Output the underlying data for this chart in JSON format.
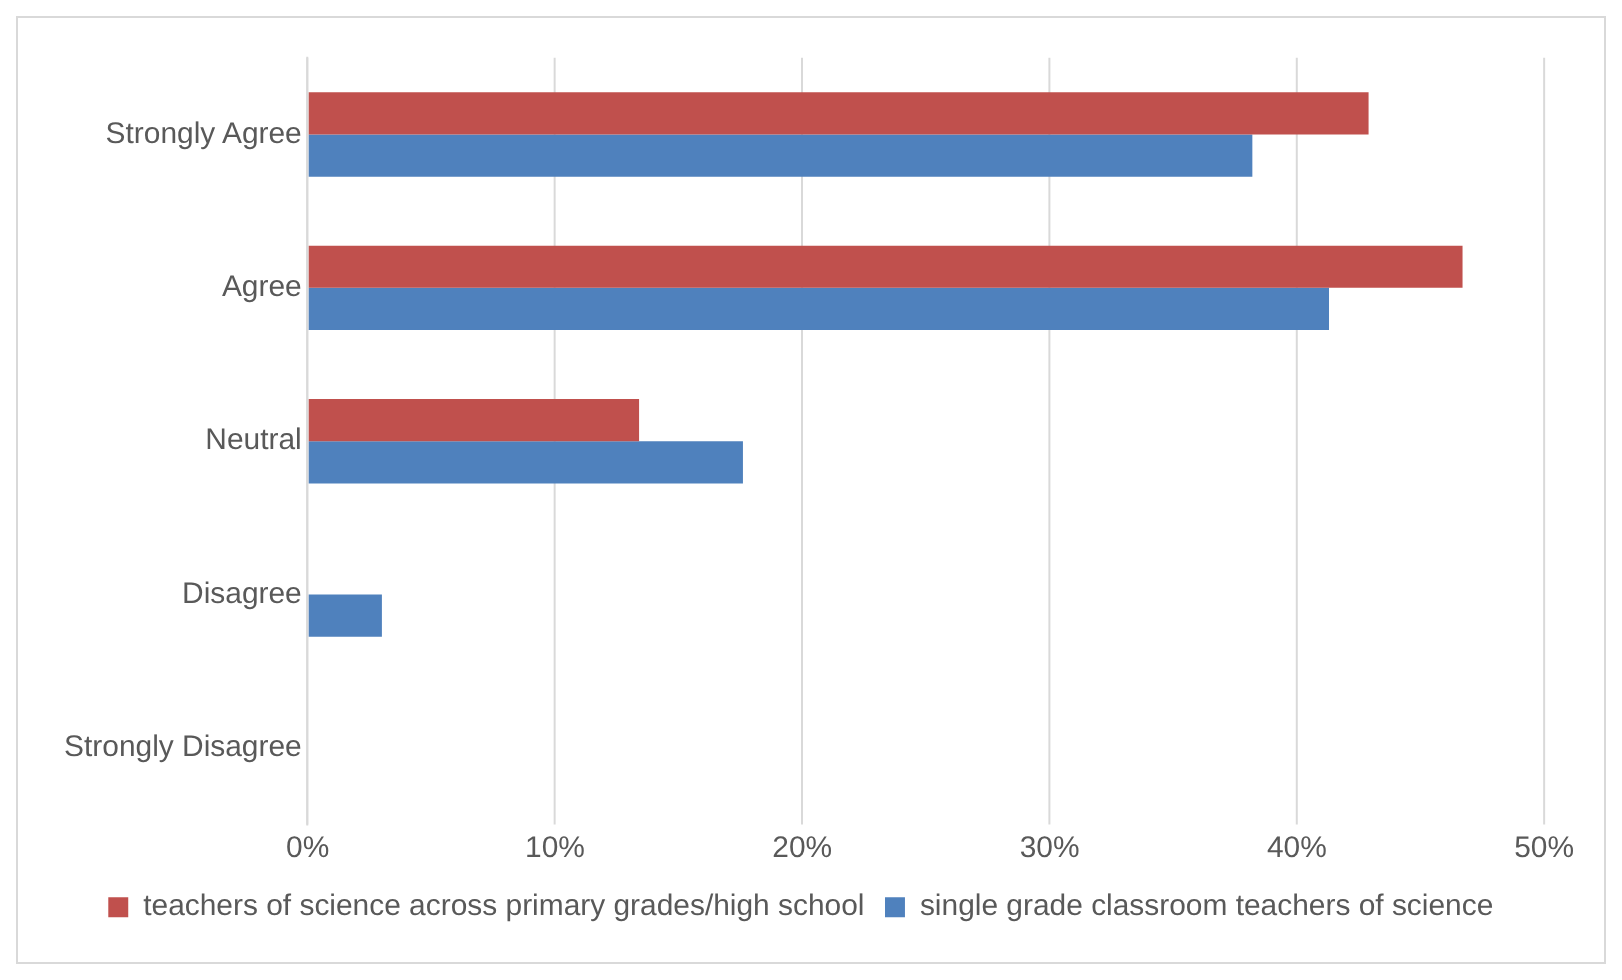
{
  "chart_data": {
    "type": "bar",
    "orientation": "horizontal",
    "categories": [
      "Strongly Agree",
      "Agree",
      "Neutral",
      "Disagree",
      "Strongly Disagree"
    ],
    "series": [
      {
        "name": "teachers of science across primary grades/high school",
        "color": "#c0504d",
        "values": [
          42.9,
          46.7,
          13.4,
          0,
          0
        ]
      },
      {
        "name": "single grade classroom teachers of science",
        "color": "#4f81bd",
        "values": [
          38.2,
          41.3,
          17.6,
          3.0,
          0
        ]
      }
    ],
    "xlim": [
      0,
      50
    ],
    "xticks": [
      {
        "value": 0,
        "label": "0%"
      },
      {
        "value": 10,
        "label": "10%"
      },
      {
        "value": 20,
        "label": "20%"
      },
      {
        "value": 30,
        "label": "30%"
      },
      {
        "value": 40,
        "label": "40%"
      },
      {
        "value": 50,
        "label": "50%"
      }
    ],
    "grid": "x",
    "legend": "bottom"
  }
}
